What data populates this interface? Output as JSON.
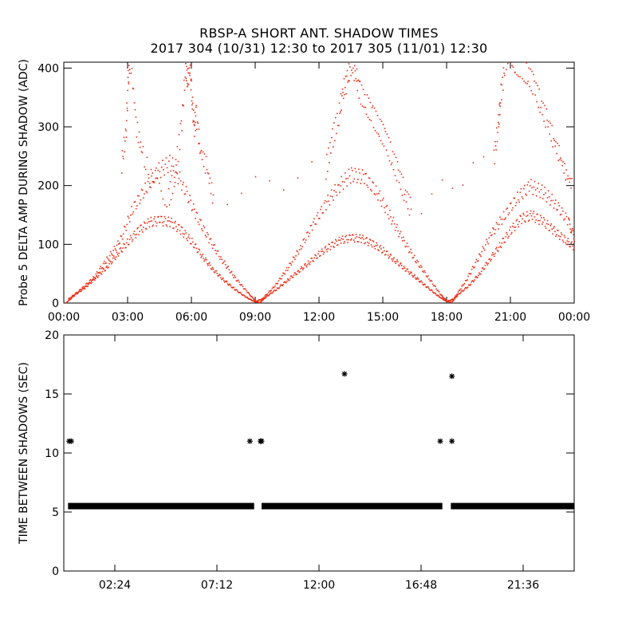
{
  "title": "RBSP-A SHORT ANT. SHADOW TIMES",
  "subtitle": "2017 304 (10/31) 12:30 to 2017 305 (11/01) 12:30",
  "colors": {
    "series": "#e8321a",
    "axes": "#000000",
    "background": "#ffffff"
  },
  "chart_data": [
    {
      "type": "scatter",
      "ylabel": "Probe 5 DELTA AMP DURING SHADOW (ADC)",
      "xlabel": "",
      "xlim": [
        0,
        24
      ],
      "ylim": [
        0,
        410
      ],
      "xticks": [
        0,
        3,
        6,
        9,
        12,
        15,
        18,
        21,
        24
      ],
      "xtick_labels": [
        "00:00",
        "03:00",
        "06:00",
        "09:00",
        "12:00",
        "15:00",
        "18:00",
        "21:00",
        "00:00"
      ],
      "yticks": [
        0,
        100,
        200,
        300,
        400
      ],
      "ytick_labels": [
        "0",
        "100",
        "200",
        "300",
        "400"
      ],
      "grid": false,
      "series": [
        {
          "style": "dense dots",
          "x": [
            0.1,
            0.5,
            1.0,
            1.5,
            2.0,
            2.5,
            3.0,
            3.5,
            4.0,
            4.5,
            5.0,
            5.5,
            6.0,
            6.5,
            7.0,
            7.5,
            8.0,
            8.5,
            8.9,
            9.2,
            9.5,
            10.0,
            10.5,
            11.0,
            11.5,
            12.0,
            12.5,
            13.0,
            13.5,
            14.0,
            14.5,
            15.0,
            15.5,
            16.0,
            16.5,
            17.0,
            17.5,
            17.9,
            18.2,
            18.5,
            19.0,
            19.5,
            20.0,
            20.5,
            21.0,
            21.5,
            22.0,
            22.5,
            23.0,
            23.5,
            24.0
          ],
          "y": [
            2,
            15,
            28,
            45,
            62,
            85,
            105,
            125,
            138,
            142,
            138,
            125,
            105,
            80,
            58,
            40,
            25,
            12,
            4,
            2,
            12,
            25,
            40,
            55,
            70,
            85,
            98,
            108,
            112,
            110,
            102,
            90,
            75,
            60,
            45,
            30,
            15,
            5,
            2,
            15,
            30,
            50,
            75,
            100,
            125,
            145,
            150,
            140,
            125,
            110,
            95
          ]
        },
        {
          "style": "dense dots",
          "x": [
            0.2,
            0.8,
            1.4,
            2.0,
            2.6,
            3.2,
            3.8,
            4.4,
            5.0,
            5.6,
            6.2,
            6.8,
            7.4,
            8.0,
            8.6,
            9.0,
            9.3,
            9.9,
            10.5,
            11.1,
            11.7,
            12.3,
            12.9,
            13.5,
            14.1,
            14.7,
            15.3,
            15.9,
            16.5,
            17.1,
            17.7,
            18.0,
            18.3,
            18.9,
            19.5,
            20.1,
            20.7,
            21.3,
            21.9,
            22.5,
            23.1,
            23.7,
            24.0
          ],
          "y": [
            8,
            25,
            45,
            75,
            105,
            160,
            195,
            225,
            240,
            200,
            150,
            110,
            75,
            45,
            20,
            4,
            8,
            30,
            60,
            95,
            135,
            170,
            200,
            220,
            215,
            190,
            150,
            110,
            75,
            45,
            15,
            4,
            8,
            40,
            80,
            120,
            150,
            180,
            200,
            190,
            170,
            140,
            110
          ]
        },
        {
          "style": "sparse high dots",
          "x": [
            2.7,
            2.9,
            3.0,
            3.1,
            3.4,
            3.7,
            4.2,
            4.9,
            5.2,
            5.5,
            5.7,
            5.8,
            5.9,
            6.0,
            6.1,
            6.2,
            6.4,
            6.7,
            7.0,
            12.3,
            12.6,
            12.9,
            13.1,
            13.3,
            13.5,
            13.7,
            13.9,
            14.2,
            14.5,
            14.8,
            15.1,
            15.4,
            15.7,
            16.0,
            16.3,
            20.2,
            20.4,
            20.5,
            20.7,
            21.0,
            21.2,
            21.5,
            21.8,
            22.1,
            22.4,
            22.7,
            23.0,
            23.3,
            23.6,
            23.9
          ],
          "y": [
            240,
            290,
            380,
            420,
            300,
            250,
            200,
            180,
            220,
            300,
            400,
            380,
            410,
            350,
            300,
            320,
            260,
            230,
            180,
            230,
            280,
            320,
            360,
            380,
            410,
            390,
            360,
            340,
            320,
            300,
            280,
            250,
            220,
            190,
            160,
            250,
            300,
            350,
            400,
            420,
            410,
            400,
            390,
            370,
            340,
            310,
            280,
            250,
            220,
            200
          ]
        }
      ]
    },
    {
      "type": "scatter",
      "ylabel": "TIME BETWEEN SHADOWS (SEC)",
      "xlabel": "",
      "xlim": [
        0,
        24
      ],
      "ylim": [
        0,
        20
      ],
      "xticks": [
        2.4,
        7.2,
        12.0,
        16.8,
        21.6
      ],
      "xtick_labels": [
        "02:24",
        "07:12",
        "12:00",
        "16:48",
        "21:36"
      ],
      "yticks": [
        0,
        5,
        10,
        15,
        20
      ],
      "ytick_labels": [
        "0",
        "5",
        "10",
        "15",
        "20"
      ],
      "grid": false,
      "marker": "asterisk",
      "series": [
        {
          "style": "baseline band",
          "segments": [
            [
              0.2,
              8.95
            ],
            [
              9.3,
              17.8
            ],
            [
              18.2,
              24.0
            ]
          ],
          "y": 5.5
        },
        {
          "style": "outliers",
          "x": [
            0.25,
            0.35,
            8.75,
            9.25,
            9.3,
            13.2,
            17.7,
            18.25,
            18.25
          ],
          "y": [
            11.0,
            11.0,
            11.0,
            11.0,
            11.0,
            16.7,
            11.0,
            16.5,
            11.0
          ]
        }
      ]
    }
  ]
}
